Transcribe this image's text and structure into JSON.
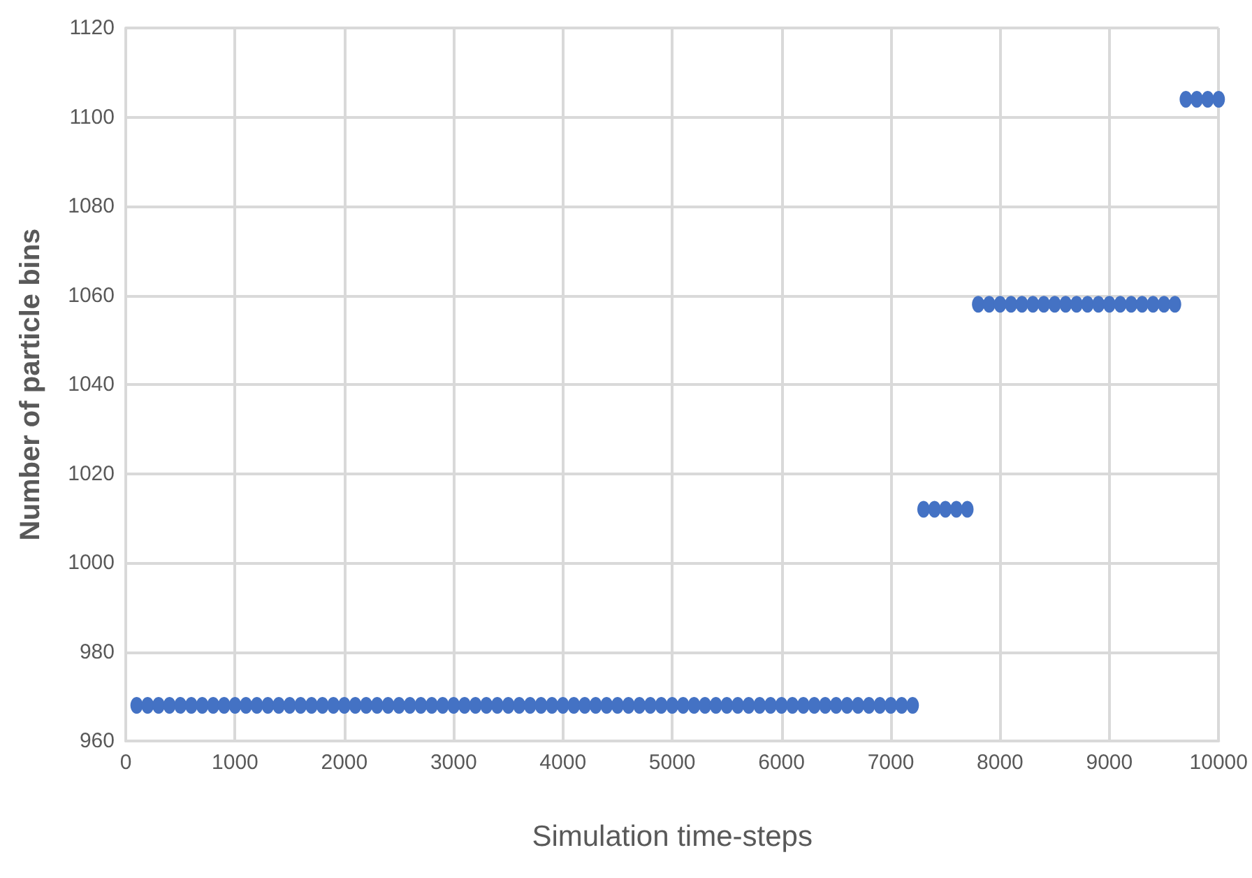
{
  "chart_data": {
    "type": "scatter",
    "xlabel": "Simulation time-steps",
    "ylabel": "Number of particle bins",
    "x": [
      100,
      200,
      300,
      400,
      500,
      600,
      700,
      800,
      900,
      1000,
      1100,
      1200,
      1300,
      1400,
      1500,
      1600,
      1700,
      1800,
      1900,
      2000,
      2100,
      2200,
      2300,
      2400,
      2500,
      2600,
      2700,
      2800,
      2900,
      3000,
      3100,
      3200,
      3300,
      3400,
      3500,
      3600,
      3700,
      3800,
      3900,
      4000,
      4100,
      4200,
      4300,
      4400,
      4500,
      4600,
      4700,
      4800,
      4900,
      5000,
      5100,
      5200,
      5300,
      5400,
      5500,
      5600,
      5700,
      5800,
      5900,
      6000,
      6100,
      6200,
      6300,
      6400,
      6500,
      6600,
      6700,
      6800,
      6900,
      7000,
      7100,
      7200,
      7300,
      7400,
      7500,
      7600,
      7700,
      7800,
      7900,
      8000,
      8100,
      8200,
      8300,
      8400,
      8500,
      8600,
      8700,
      8800,
      8900,
      9000,
      9100,
      9200,
      9300,
      9400,
      9500,
      9600,
      9700,
      9800,
      9900,
      10000
    ],
    "series": [
      {
        "color": "#4472c4",
        "values": [
          968,
          968,
          968,
          968,
          968,
          968,
          968,
          968,
          968,
          968,
          968,
          968,
          968,
          968,
          968,
          968,
          968,
          968,
          968,
          968,
          968,
          968,
          968,
          968,
          968,
          968,
          968,
          968,
          968,
          968,
          968,
          968,
          968,
          968,
          968,
          968,
          968,
          968,
          968,
          968,
          968,
          968,
          968,
          968,
          968,
          968,
          968,
          968,
          968,
          968,
          968,
          968,
          968,
          968,
          968,
          968,
          968,
          968,
          968,
          968,
          968,
          968,
          968,
          968,
          968,
          968,
          968,
          968,
          968,
          968,
          968,
          968,
          1012,
          1012,
          1012,
          1012,
          1012,
          1058,
          1058,
          1058,
          1058,
          1058,
          1058,
          1058,
          1058,
          1058,
          1058,
          1058,
          1058,
          1058,
          1058,
          1058,
          1058,
          1058,
          1058,
          1058,
          1104,
          1104,
          1104,
          1104
        ]
      }
    ],
    "xlim": [
      0,
      10000
    ],
    "xticks": [
      0,
      1000,
      2000,
      3000,
      4000,
      5000,
      6000,
      7000,
      8000,
      9000,
      10000
    ],
    "ylim": [
      960,
      1120
    ],
    "yticks": [
      960,
      980,
      1000,
      1020,
      1040,
      1060,
      1080,
      1100,
      1120
    ],
    "grid": true,
    "marker": "circle"
  }
}
